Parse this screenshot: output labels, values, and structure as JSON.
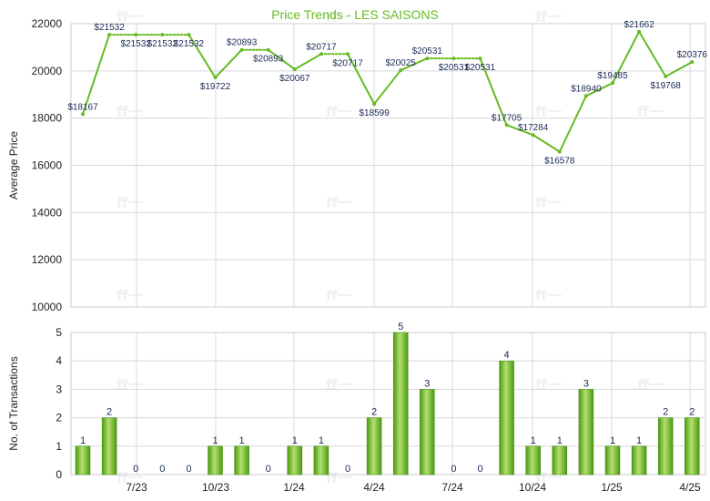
{
  "title": "Price Trends - LES SAISONS",
  "watermark": "ff一",
  "colors": {
    "line": "#66bb22",
    "title": "#66bb22",
    "bar_dark": "#4a9a10",
    "bar_light": "#b4e070",
    "grid": "#d8d8d8"
  },
  "chart_data": [
    {
      "type": "line",
      "title": "Price Trends - LES SAISONS",
      "ylabel": "Average Price",
      "ylim": [
        10000,
        22000
      ],
      "yticks": [
        10000,
        12000,
        14000,
        16000,
        18000,
        20000,
        22000
      ],
      "xtick_labels": [
        "7/23",
        "10/23",
        "1/24",
        "4/24",
        "7/24",
        "10/24",
        "1/25",
        "4/25"
      ],
      "grid": true,
      "series": [
        {
          "values": [
            18167,
            21532,
            21532,
            21532,
            21532,
            19722,
            20893,
            20893,
            20067,
            20717,
            20717,
            18599,
            20025,
            20531,
            20531,
            20531,
            17705,
            17284,
            16578,
            18940,
            19485,
            21662,
            19768,
            20376
          ],
          "labels": [
            "$18167",
            "$21532",
            "$21532",
            "$21532",
            "$21532",
            "$19722",
            "$20893",
            "$20893",
            "$20067",
            "$20717",
            "$20717",
            "$18599",
            "$20025",
            "$20531",
            "$20531",
            "$20531",
            "$17705",
            "$17284",
            "$16578",
            "$18940",
            "$19485",
            "$21662",
            "$19768",
            "$20376"
          ],
          "dotted_segments": [
            [
              1,
              2
            ],
            [
              2,
              3
            ],
            [
              3,
              4
            ],
            [
              6,
              7
            ],
            [
              9,
              10
            ],
            [
              13,
              14
            ],
            [
              14,
              15
            ]
          ]
        }
      ]
    },
    {
      "type": "bar",
      "ylabel": "No. of Transactions",
      "ylim": [
        0,
        5
      ],
      "yticks": [
        0,
        1,
        2,
        3,
        4,
        5
      ],
      "xtick_labels": [
        "7/23",
        "10/23",
        "1/24",
        "4/24",
        "7/24",
        "10/24",
        "1/25",
        "4/25"
      ],
      "grid": true,
      "series": [
        {
          "values": [
            1,
            2,
            0,
            0,
            0,
            1,
            1,
            0,
            1,
            1,
            0,
            2,
            5,
            3,
            0,
            0,
            4,
            1,
            1,
            3,
            1,
            1,
            2,
            2
          ]
        }
      ]
    }
  ]
}
